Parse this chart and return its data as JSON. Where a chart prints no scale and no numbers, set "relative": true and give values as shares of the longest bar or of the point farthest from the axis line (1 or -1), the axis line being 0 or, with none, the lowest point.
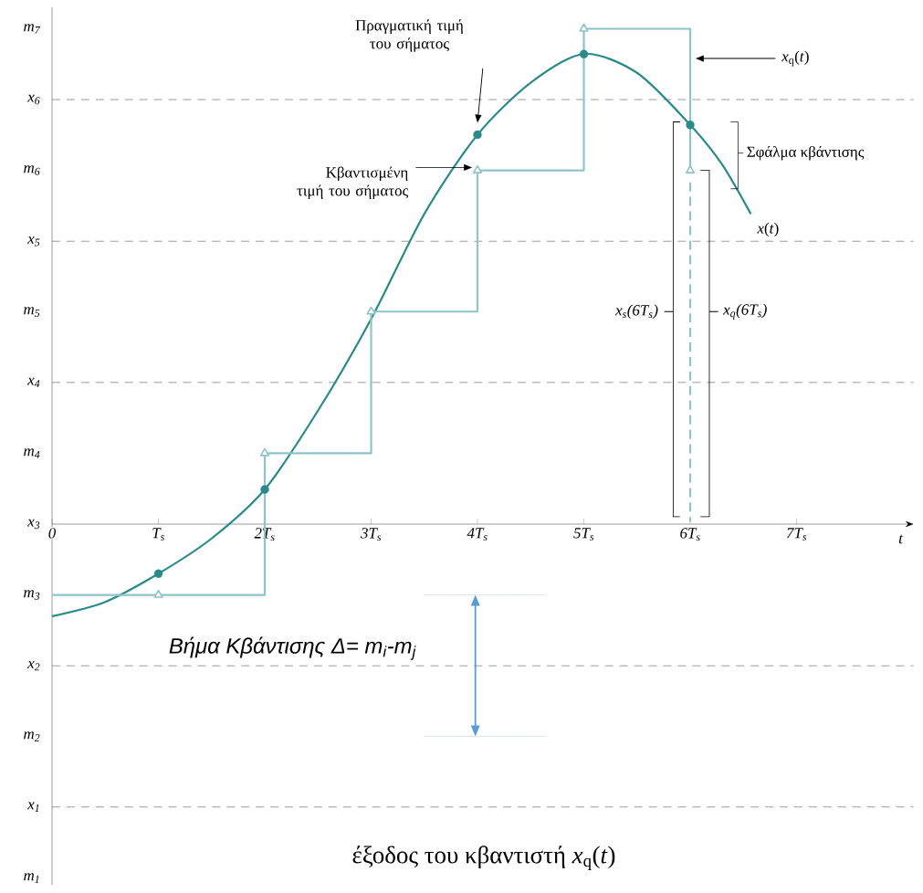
{
  "chart_data": {
    "type": "line",
    "relative": true,
    "xlabel": "*t*",
    "annotations": [
      "Πραγματική τιμή του σήματος",
      "Κβαντισμένη τιμή του σήματος",
      "Σφάλμα κβάντισης",
      "x$_{s}$(6T$_{s}$)",
      "x$_{q}$(6T$_{s}$)",
      "Βήμα Κβάντισης  Δ= m$_{i}$-m$_{j}$",
      "έξοδος του κβαντιστή *x*$_{q}$(*t*)",
      "m$_{1}$",
      "m$_{2}$",
      "m$_{3}$",
      "m$_{4}$",
      "m$_{5}$",
      "m$_{6}$",
      "m$_{7}$",
      "x$_{3}$"
    ],
    "series": [
      {
        "name": "*x*(*t*)",
        "color": "#2a8a8a",
        "x": [
          0,
          0.5,
          1,
          1.5,
          2,
          2.5,
          3,
          3.5,
          4,
          4.5,
          5,
          5.5,
          6,
          6.3,
          6.57
        ],
        "values": [
          -0.186,
          -0.157,
          -0.1,
          -0.029,
          0.07,
          0.229,
          0.414,
          0.626,
          0.786,
          0.891,
          0.949,
          0.911,
          0.806,
          0.726,
          0.626
        ]
      },
      {
        "name": "*x*$_{q}$(*t*)",
        "type": "step",
        "color": "#8ec4c8",
        "x": [
          0,
          2,
          3,
          4,
          5,
          6
        ],
        "values": [
          -0.143,
          0.143,
          0.429,
          0.714,
          1,
          0.714
        ]
      },
      {
        "type": "scatter",
        "marker": "circle",
        "color": "#2a8a8a",
        "x": [
          1,
          2,
          4,
          5,
          6
        ],
        "values": [
          -0.1,
          0.07,
          0.786,
          0.949,
          0.806
        ]
      },
      {
        "type": "scatter",
        "marker": "triangle",
        "color": "#8ec4c8",
        "x": [
          1,
          2,
          3,
          4,
          5,
          6
        ],
        "values": [
          -0.143,
          0.143,
          0.429,
          0.714,
          1,
          0.714
        ]
      }
    ],
    "xlim": [
      0,
      8.1
    ],
    "xticks": [
      0,
      {
        "value": 1,
        "label": "T$_{s}$"
      },
      {
        "value": 2,
        "label": "2T$_{s}$"
      },
      {
        "value": 3,
        "label": "3T$_{s}$"
      },
      {
        "value": 4,
        "label": "4T$_{s}$"
      },
      {
        "value": 5,
        "label": "5T$_{s}$"
      },
      {
        "value": 6,
        "label": "6T$_{s}$"
      },
      {
        "value": 7,
        "label": "7T$_{s}$"
      }
    ],
    "ref_lines": [
      {
        "axis": "y",
        "value": -0.571,
        "label": "x$_{1}$",
        "line_style": "dashed"
      },
      {
        "axis": "y",
        "value": -0.286,
        "label": "x$_{2}$",
        "line_style": "dashed"
      },
      {
        "axis": "y",
        "value": 0.286,
        "label": "x$_{4}$",
        "line_style": "dashed"
      },
      {
        "axis": "y",
        "value": 0.571,
        "label": "x$_{5}$",
        "line_style": "dashed"
      },
      {
        "axis": "y",
        "value": 0.857,
        "label": "x$_{6}$",
        "line_style": "dashed"
      }
    ]
  }
}
